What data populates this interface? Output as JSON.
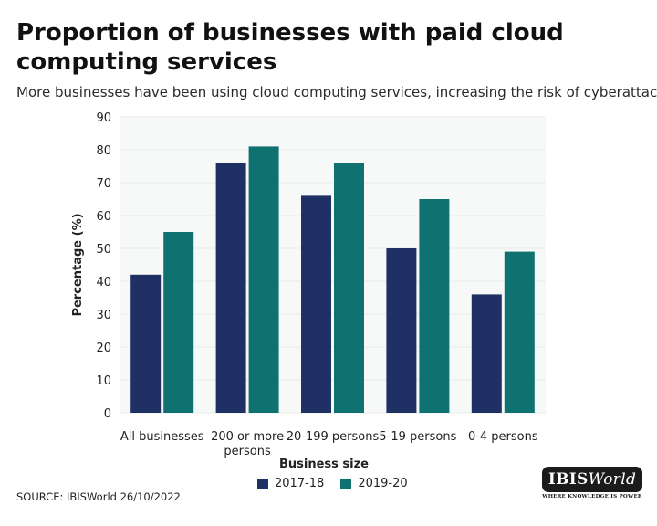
{
  "header": {
    "title": "Proportion of businesses with paid cloud computing services",
    "subtitle": "More businesses have been using cloud computing services, increasing the risk of cyberattacks."
  },
  "footer": {
    "source": "SOURCE: IBISWorld 26/10/2022"
  },
  "logo": {
    "text_main": "IBIS",
    "text_italic": "World",
    "tagline": "WHERE KNOWLEDGE IS POWER"
  },
  "colors": {
    "series_2017": "#1f3064",
    "series_2019": "#107270",
    "plot_background": "#f7f9f8",
    "grid": "#e8ecea"
  },
  "chart_data": {
    "type": "bar",
    "title": "Proportion of businesses with paid cloud computing services",
    "subtitle": "More businesses have been using cloud computing services, increasing the risk of cyberattacks.",
    "xlabel": "Business size",
    "ylabel": "Percentage (%)",
    "ylim": [
      0,
      90
    ],
    "yticks": [
      0,
      10,
      20,
      30,
      40,
      50,
      60,
      70,
      80,
      90
    ],
    "categories": [
      [
        "All businesses"
      ],
      [
        "200 or more",
        "persons"
      ],
      [
        "20-199 persons"
      ],
      [
        "5-19 persons"
      ],
      [
        "0-4 persons"
      ]
    ],
    "series": [
      {
        "name": "2017-18",
        "values": [
          42,
          76,
          66,
          50,
          36
        ]
      },
      {
        "name": "2019-20",
        "values": [
          55,
          81,
          76,
          65,
          49
        ]
      }
    ],
    "legend_position": "bottom-center",
    "grid": true
  }
}
